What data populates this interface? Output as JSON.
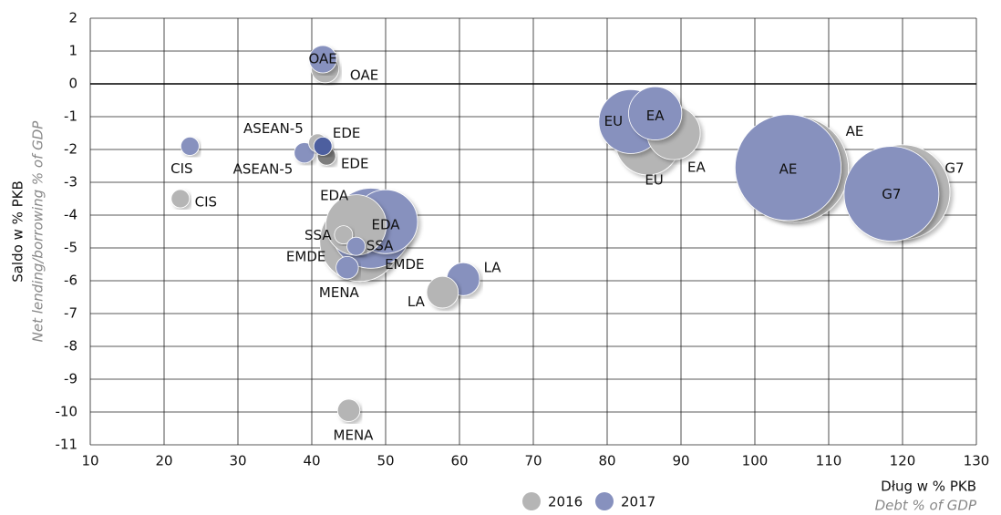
{
  "chart_data": {
    "type": "bubble",
    "x_label": "Dług w % PKB",
    "x_label_en": "Debt % of GDP",
    "y_label": "Saldo w % PKB",
    "y_label_en": "Net lending/borrowing % of GDP",
    "xlim": [
      10,
      130
    ],
    "xticks": [
      10,
      20,
      30,
      40,
      50,
      60,
      70,
      80,
      90,
      100,
      110,
      120,
      130
    ],
    "ylim": [
      -11,
      2
    ],
    "yticks": [
      -11,
      -10,
      -9,
      -8,
      -7,
      -6,
      -5,
      -4,
      -3,
      -2,
      -1,
      0,
      1,
      2
    ],
    "grid": true,
    "legend": "bottom",
    "series": [
      {
        "name": "2016",
        "color": "#b5b5b5",
        "labels": [
          "OAE",
          "CIS",
          "ASEAN-5",
          "EDE",
          "EDA",
          "SSA",
          "EMDE",
          "MENA",
          "LA",
          "EU",
          "EA",
          "AE",
          "G7"
        ],
        "x": [
          41.8,
          22.2,
          40.8,
          42,
          46,
          44.3,
          46.5,
          45,
          57.7,
          85.5,
          89,
          105.5,
          120
        ],
        "values": [
          0.45,
          -3.5,
          -1.8,
          -2.2,
          -4.3,
          -4.6,
          -4.8,
          -9.95,
          -6.35,
          -1.8,
          -1.5,
          -2.6,
          -3.3
        ],
        "sizes": [
          9,
          4,
          4,
          4,
          44,
          4,
          77,
          6,
          12,
          49,
          34,
          135,
          108
        ],
        "point_colors": [
          "#b5b5b5",
          "#b5b5b5",
          "#b5b5b5",
          "#7d7d7d",
          "#b5b5b5",
          "#b5b5b5",
          "#b5b5b5",
          "#b5b5b5",
          "#b5b5b5",
          "#b5b5b5",
          "#b5b5b5",
          "#b5b5b5",
          "#b5b5b5"
        ]
      },
      {
        "name": "2017",
        "color": "#8791be",
        "labels": [
          "OAE",
          "CIS",
          "ASEAN-5",
          "EDE",
          "EDA",
          "SSA",
          "EMDE",
          "MENA",
          "LA",
          "EU",
          "EA",
          "AE",
          "G7"
        ],
        "x": [
          41.5,
          23.5,
          39,
          41.5,
          50,
          46,
          48,
          44.8,
          60.5,
          83.2,
          86.5,
          104.5,
          118.5
        ],
        "values": [
          0.75,
          -1.9,
          -2.1,
          -1.9,
          -4.2,
          -4.95,
          -4.4,
          -5.6,
          -5.95,
          -1.15,
          -0.9,
          -2.55,
          -3.35
        ],
        "sizes": [
          9,
          4,
          5,
          4,
          49,
          4,
          77,
          6,
          13,
          49,
          34,
          135,
          108
        ],
        "point_colors": [
          "#8791be",
          "#8791be",
          "#8791be",
          "#4d5e9f",
          "#8791be",
          "#8791be",
          "#8791be",
          "#8791be",
          "#8791be",
          "#8791be",
          "#8791be",
          "#8791be",
          "#8791be"
        ]
      }
    ]
  }
}
